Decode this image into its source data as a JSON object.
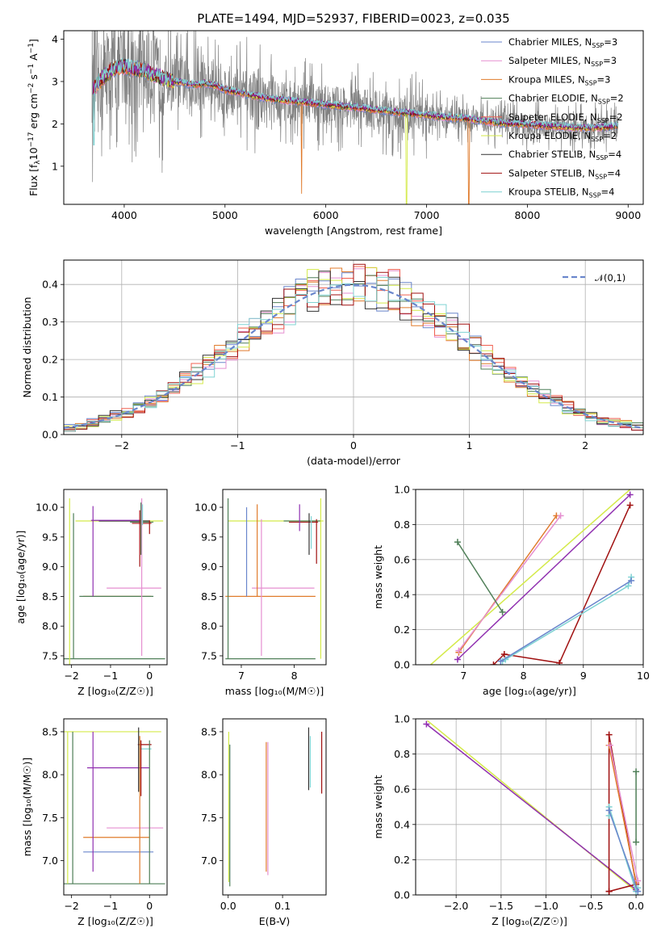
{
  "figure": {
    "title": "PLATE=1494, MJD=52937, FIBERID=0023, z=0.035",
    "colors": {
      "data": "#808080",
      "Chabrier MILES": "#6a86cc",
      "Salpeter MILES": "#e58fd0",
      "Kroupa MILES": "#e07b2c",
      "Chabrier ELODIE": "#4f7f58",
      "Salpeter ELODIE": "#f06050",
      "Kroupa ELODIE": "#d4ea4a",
      "Chabrier STELIB": "#333333",
      "Salpeter STELIB": "#a01010",
      "Kroupa STELIB": "#7fd3d3",
      "extra": "#9030b0",
      "gaussian": "#6a86cc"
    },
    "ssp_labels": [
      "Chabrier MILES, N",
      "Salpeter MILES, N",
      "Kroupa MILES, N",
      "Chabrier ELODIE, N",
      "Salpeter ELODIE, N",
      "Kroupa ELODIE, N",
      "Chabrier STELIB, N",
      "Salpeter STELIB, N",
      "Kroupa STELIB, N"
    ],
    "ssp_sub": "SSP",
    "ssp_counts": [
      "=3",
      "=3",
      "=3",
      "=2",
      "=2",
      "=2",
      "=4",
      "=4",
      "=4"
    ]
  },
  "chart_data": [
    {
      "id": "spectrum",
      "type": "line",
      "title": "PLATE=1494, MJD=52937, FIBERID=0023, z=0.035",
      "xlabel": "wavelength [Angstrom, rest frame]",
      "ylabel_parts": [
        "Flux [f",
        "λ",
        "10",
        "−17",
        " erg cm",
        "−2",
        " s",
        "−1",
        " A",
        "−1",
        "]"
      ],
      "xlim": [
        3400,
        9150
      ],
      "ylim": [
        0.1,
        4.2
      ],
      "xticks": [
        "4000",
        "5000",
        "6000",
        "7000",
        "8000",
        "9000"
      ],
      "yticks": [
        "1",
        "2",
        "3",
        "4"
      ],
      "legend": "top-right",
      "model_knots": {
        "x": [
          3680,
          3800,
          3900,
          4000,
          4100,
          4200,
          4300,
          4400,
          4500,
          4600,
          4700,
          4800,
          4900,
          5000,
          5200,
          5400,
          5600,
          5800,
          6000,
          6200,
          6400,
          6600,
          6800,
          7000,
          7200,
          7400,
          7600,
          7800,
          8000,
          8200,
          8400,
          8600,
          8800,
          8900
        ],
        "y": [
          2.8,
          3.1,
          3.3,
          3.35,
          3.3,
          3.25,
          3.15,
          3.05,
          3.0,
          2.95,
          2.92,
          2.95,
          2.9,
          2.8,
          2.7,
          2.6,
          2.55,
          2.5,
          2.45,
          2.4,
          2.35,
          2.3,
          2.25,
          2.2,
          2.15,
          2.12,
          2.05,
          2.0,
          1.98,
          1.95,
          1.92,
          1.9,
          1.92,
          1.95
        ]
      },
      "dips": [
        {
          "x": 5760,
          "y": 0.35,
          "series": "Kroupa MILES"
        },
        {
          "x": 6800,
          "y": 0.1,
          "series": "Kroupa ELODIE"
        },
        {
          "x": 7420,
          "y": 0.1,
          "series": "Kroupa MILES"
        },
        {
          "x": 3700,
          "y": 1.5,
          "series": "Kroupa STELIB"
        }
      ]
    },
    {
      "id": "residuals",
      "type": "line",
      "xlabel": "(data-model)/error",
      "ylabel": "Normed distribution",
      "xlim": [
        -2.5,
        2.5
      ],
      "ylim": [
        0,
        0.465
      ],
      "xticks": [
        "−2",
        "−1",
        "0",
        "1",
        "2"
      ],
      "yticks": [
        "0.0",
        "0.1",
        "0.2",
        "0.3",
        "0.4"
      ],
      "legend_label": "𝒩(0,1)",
      "grid": true,
      "bin_width": 0.1
    },
    {
      "id": "age_vs_Z",
      "type": "scatter",
      "xlabel": "Z [log₁₀(Z/Z☉)]",
      "ylabel": "age  [log₁₀(age/yr)]",
      "xlim": [
        -2.2,
        0.45
      ],
      "ylim": [
        7.35,
        10.3
      ],
      "xticks": [
        -2,
        -1,
        0
      ],
      "xticklabels": [
        "−2",
        "−1",
        "0"
      ],
      "yticks": [
        7.5,
        8.0,
        8.5,
        9.0,
        9.5,
        10.0
      ],
      "yticklabels": [
        "7.5",
        "8.0",
        "8.5",
        "9.0",
        "9.5",
        "10.0"
      ],
      "hsegments": [
        {
          "y": 9.77,
          "x0": -1.9,
          "x1": 0.35,
          "c": "Kroupa ELODIE"
        },
        {
          "y": 9.75,
          "x0": -0.5,
          "x1": 0.1,
          "c": "Chabrier ELODIE"
        },
        {
          "y": 9.77,
          "x0": -1.3,
          "x1": 0.0,
          "c": "Chabrier STELIB"
        },
        {
          "y": 9.73,
          "x0": -0.45,
          "x1": 0.05,
          "c": "Salpeter STELIB"
        },
        {
          "y": 9.78,
          "x0": -1.5,
          "x1": -0.2,
          "c": "extra"
        },
        {
          "y": 8.64,
          "x0": -1.1,
          "x1": 0.3,
          "c": "Salpeter MILES"
        },
        {
          "y": 8.5,
          "x0": -1.7,
          "x1": 0.05,
          "c": "Kroupa MILES"
        },
        {
          "y": 8.5,
          "x0": -1.8,
          "x1": 0.1,
          "c": "Chabrier ELODIE"
        },
        {
          "y": 7.45,
          "x0": -2.2,
          "x1": 0.4,
          "c": "Chabrier ELODIE"
        }
      ],
      "vsegments": [
        {
          "x": -2.05,
          "y0": 7.35,
          "y1": 10.15,
          "c": "Kroupa ELODIE"
        },
        {
          "x": -1.95,
          "y0": 7.45,
          "y1": 9.9,
          "c": "Chabrier ELODIE"
        },
        {
          "x": -1.45,
          "y0": 8.5,
          "y1": 10.02,
          "c": "extra"
        },
        {
          "x": -0.2,
          "y0": 7.5,
          "y1": 10.15,
          "c": "Salpeter MILES"
        },
        {
          "x": -0.22,
          "y0": 9.2,
          "y1": 10.08,
          "c": "Chabrier ELODIE"
        },
        {
          "x": -0.25,
          "y0": 9.0,
          "y1": 9.95,
          "c": "Salpeter STELIB"
        },
        {
          "x": 0.0,
          "y0": 9.55,
          "y1": 9.78,
          "c": "Salpeter STELIB"
        },
        {
          "x": -0.18,
          "y0": 9.7,
          "y1": 10.05,
          "c": "Kroupa STELIB"
        }
      ]
    },
    {
      "id": "age_vs_mass",
      "type": "scatter",
      "xlabel": "mass [log₁₀(M/M☉)]",
      "xlim": [
        6.65,
        8.6
      ],
      "ylim": [
        7.35,
        10.3
      ],
      "xticks": [
        7,
        8
      ],
      "xticklabels": [
        "7",
        "8"
      ],
      "yticks": [
        7.5,
        8.0,
        8.5,
        9.0,
        9.5,
        10.0
      ],
      "yticklabels": [
        "7.5",
        "8.0",
        "8.5",
        "9.0",
        "9.5",
        "10.0"
      ],
      "hsegments": [
        {
          "y": 9.77,
          "x0": 6.75,
          "x1": 8.55,
          "c": "Kroupa ELODIE"
        },
        {
          "y": 9.77,
          "x0": 7.8,
          "x1": 8.5,
          "c": "Chabrier ELODIE"
        },
        {
          "y": 9.75,
          "x0": 7.9,
          "x1": 8.45,
          "c": "Salpeter STELIB"
        },
        {
          "y": 8.64,
          "x0": 7.2,
          "x1": 8.38,
          "c": "Salpeter MILES"
        },
        {
          "y": 8.5,
          "x0": 6.7,
          "x1": 8.4,
          "c": "Kroupa MILES"
        },
        {
          "y": 7.45,
          "x0": 6.7,
          "x1": 8.4,
          "c": "Chabrier ELODIE"
        }
      ],
      "vsegments": [
        {
          "x": 6.75,
          "y0": 7.45,
          "y1": 10.15,
          "c": "Chabrier ELODIE"
        },
        {
          "x": 7.1,
          "y0": 8.5,
          "y1": 10.0,
          "c": "Chabrier MILES"
        },
        {
          "x": 7.3,
          "y0": 8.5,
          "y1": 10.05,
          "c": "Kroupa MILES"
        },
        {
          "x": 7.38,
          "y0": 7.5,
          "y1": 9.8,
          "c": "Salpeter MILES"
        },
        {
          "x": 8.1,
          "y0": 9.6,
          "y1": 10.05,
          "c": "extra"
        },
        {
          "x": 8.28,
          "y0": 9.2,
          "y1": 9.9,
          "c": "Chabrier STELIB"
        },
        {
          "x": 8.32,
          "y0": 9.3,
          "y1": 9.85,
          "c": "Kroupa STELIB"
        },
        {
          "x": 8.42,
          "y0": 9.05,
          "y1": 9.8,
          "c": "Salpeter STELIB"
        },
        {
          "x": 8.5,
          "y0": 7.45,
          "y1": 10.15,
          "c": "Kroupa ELODIE"
        }
      ]
    },
    {
      "id": "weight_vs_age",
      "type": "line",
      "xlabel": "age  [log₁₀(age/yr)]",
      "ylabel": "mass weight",
      "xlim": [
        6.2,
        10.0
      ],
      "ylim": [
        0.0,
        1.0
      ],
      "xticks": [
        7,
        8,
        9,
        10
      ],
      "xticklabels": [
        "7",
        "8",
        "9",
        "10"
      ],
      "yticks": [
        0.0,
        0.2,
        0.4,
        0.6,
        0.8,
        1.0
      ],
      "yticklabels": [
        "0.0",
        "0.2",
        "0.4",
        "0.6",
        "0.8",
        "1.0"
      ],
      "grid": true,
      "series": [
        {
          "name": "Kroupa ELODIE",
          "x": [
            6.45,
            9.78
          ],
          "y": [
            0.0,
            1.0
          ],
          "marker": false
        },
        {
          "name": "extra",
          "x": [
            6.9,
            9.78
          ],
          "y": [
            0.03,
            0.97
          ]
        },
        {
          "name": "Kroupa MILES",
          "x": [
            6.92,
            8.55
          ],
          "y": [
            0.07,
            0.85
          ]
        },
        {
          "name": "Salpeter MILES",
          "x": [
            6.92,
            8.62
          ],
          "y": [
            0.08,
            0.85
          ]
        },
        {
          "name": "Chabrier ELODIE",
          "x": [
            6.9,
            7.65
          ],
          "y": [
            0.7,
            0.3
          ]
        },
        {
          "name": "Salpeter STELIB",
          "x": [
            7.5,
            7.68,
            8.6,
            9.78
          ],
          "y": [
            0.0,
            0.06,
            0.01,
            0.91
          ]
        },
        {
          "name": "Kroupa STELIB",
          "x": [
            7.65,
            7.7,
            9.75,
            9.8
          ],
          "y": [
            0.02,
            0.03,
            0.45,
            0.5
          ]
        },
        {
          "name": "Chabrier MILES",
          "x": [
            7.62,
            9.8
          ],
          "y": [
            0.02,
            0.48
          ]
        }
      ]
    },
    {
      "id": "mass_vs_Z",
      "type": "scatter",
      "xlabel": "Z [log₁₀(Z/Z☉)]",
      "ylabel": "mass [log₁₀(M/M☉)]",
      "xlim": [
        -2.2,
        0.45
      ],
      "ylim": [
        6.6,
        8.65
      ],
      "xticks": [
        -2,
        -1,
        0
      ],
      "xticklabels": [
        "−2",
        "−1",
        "0"
      ],
      "yticks": [
        7.0,
        7.5,
        8.0,
        8.5
      ],
      "yticklabels": [
        "7.0",
        "7.5",
        "8.0",
        "8.5"
      ],
      "hsegments": [
        {
          "y": 8.5,
          "x0": -2.2,
          "x1": 0.3,
          "c": "Kroupa ELODIE"
        },
        {
          "y": 8.35,
          "x0": -0.3,
          "x1": 0.05,
          "c": "Salpeter STELIB"
        },
        {
          "y": 8.3,
          "x0": -0.25,
          "x1": 0.05,
          "c": "Kroupa STELIB"
        },
        {
          "y": 8.08,
          "x0": -1.6,
          "x1": 0.0,
          "c": "extra"
        },
        {
          "y": 7.38,
          "x0": -1.1,
          "x1": 0.35,
          "c": "Salpeter MILES"
        },
        {
          "y": 7.27,
          "x0": -1.7,
          "x1": 0.0,
          "c": "Kroupa MILES"
        },
        {
          "y": 7.1,
          "x0": -1.7,
          "x1": 0.1,
          "c": "Chabrier MILES"
        },
        {
          "y": 6.73,
          "x0": -2.2,
          "x1": 0.4,
          "c": "Chabrier ELODIE"
        }
      ],
      "vsegments": [
        {
          "x": -2.1,
          "y0": 6.73,
          "y1": 8.5,
          "c": "Kroupa ELODIE"
        },
        {
          "x": -1.97,
          "y0": 6.73,
          "y1": 8.5,
          "c": "Chabrier ELODIE"
        },
        {
          "x": -1.45,
          "y0": 6.87,
          "y1": 8.5,
          "c": "extra"
        },
        {
          "x": -0.28,
          "y0": 7.8,
          "y1": 8.55,
          "c": "Chabrier STELIB"
        },
        {
          "x": -0.25,
          "y0": 6.73,
          "y1": 8.45,
          "c": "Kroupa MILES"
        },
        {
          "x": -0.22,
          "y0": 7.75,
          "y1": 8.4,
          "c": "Salpeter STELIB"
        },
        {
          "x": 0.0,
          "y0": 6.73,
          "y1": 8.4,
          "c": "Chabrier ELODIE"
        }
      ]
    },
    {
      "id": "mass_vs_EBV",
      "type": "scatter",
      "xlabel": "E(B-V)",
      "xlim": [
        -0.01,
        0.18
      ],
      "ylim": [
        6.6,
        8.65
      ],
      "xticks": [
        0.0,
        0.1
      ],
      "xticklabels": [
        "0.0",
        "0.1"
      ],
      "yticks": [
        7.0,
        7.5,
        8.0,
        8.5
      ],
      "yticklabels": [
        "7.0",
        "7.5",
        "8.0",
        "8.5"
      ],
      "vsegments": [
        {
          "x": 0.001,
          "y0": 6.75,
          "y1": 8.5,
          "c": "Kroupa ELODIE"
        },
        {
          "x": 0.003,
          "y0": 6.7,
          "y1": 8.35,
          "c": "Chabrier ELODIE"
        },
        {
          "x": 0.07,
          "y0": 6.87,
          "y1": 8.38,
          "c": "Kroupa MILES"
        },
        {
          "x": 0.073,
          "y0": 6.83,
          "y1": 8.38,
          "c": "Salpeter MILES"
        },
        {
          "x": 0.148,
          "y0": 7.82,
          "y1": 8.55,
          "c": "Chabrier STELIB"
        },
        {
          "x": 0.151,
          "y0": 7.85,
          "y1": 8.45,
          "c": "Kroupa STELIB"
        },
        {
          "x": 0.172,
          "y0": 7.78,
          "y1": 8.5,
          "c": "Salpeter STELIB"
        }
      ]
    },
    {
      "id": "weight_vs_Z",
      "type": "line",
      "xlabel": "Z [log₁₀(Z/Z☉)]",
      "ylabel": "mass weight",
      "xlim": [
        -2.45,
        0.08
      ],
      "ylim": [
        0.0,
        1.0
      ],
      "xticks": [
        -2.0,
        -1.5,
        -1.0,
        -0.5,
        0.0
      ],
      "xticklabels": [
        "−2.0",
        "−1.5",
        "−1.0",
        "−0.5",
        "0.0"
      ],
      "yticks": [
        0.0,
        0.2,
        0.4,
        0.6,
        0.8,
        1.0
      ],
      "yticklabels": [
        "0.0",
        "0.2",
        "0.4",
        "0.6",
        "0.8",
        "1.0"
      ],
      "grid": true,
      "series": [
        {
          "name": "Kroupa ELODIE",
          "x": [
            -2.32,
            0.0
          ],
          "y": [
            0.99,
            0.02
          ],
          "marker": false
        },
        {
          "name": "extra",
          "x": [
            -2.33,
            0.0
          ],
          "y": [
            0.97,
            0.03
          ]
        },
        {
          "name": "Salpeter STELIB",
          "x": [
            -0.3,
            -0.3,
            0.0,
            -0.3
          ],
          "y": [
            0.02,
            0.91,
            0.06,
            0.02
          ]
        },
        {
          "name": "Kroupa MILES",
          "x": [
            -0.3,
            0.0
          ],
          "y": [
            0.85,
            0.07
          ]
        },
        {
          "name": "Salpeter MILES",
          "x": [
            -0.29,
            0.02
          ],
          "y": [
            0.85,
            0.08
          ]
        },
        {
          "name": "Kroupa STELIB",
          "x": [
            -0.3,
            -0.3,
            0.0,
            0.02
          ],
          "y": [
            0.45,
            0.5,
            0.02,
            0.04
          ]
        },
        {
          "name": "Chabrier ELODIE",
          "x": [
            0.0,
            0.0
          ],
          "y": [
            0.7,
            0.3
          ]
        },
        {
          "name": "Chabrier MILES",
          "x": [
            -0.3,
            0.02
          ],
          "y": [
            0.48,
            0.02
          ]
        }
      ]
    }
  ]
}
